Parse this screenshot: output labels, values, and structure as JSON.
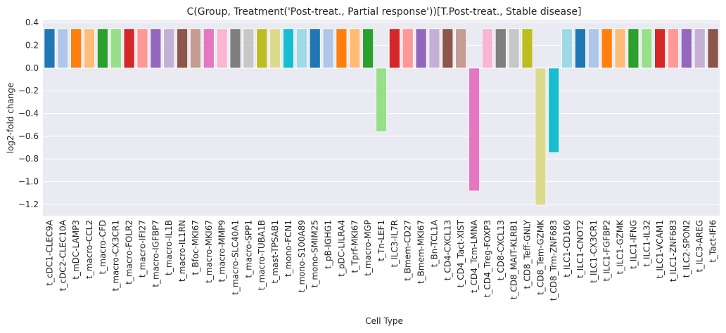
{
  "chart_data": {
    "type": "bar",
    "title": "C(Group, Treatment('Post-treat., Partial response'))[T.Post-treat., Stable disease]",
    "xlabel": "Cell Type",
    "ylabel": "log2-fold change",
    "ylim": [
      -1.3,
      0.42
    ],
    "yticks": [
      0.4,
      0.2,
      0.0,
      -0.2,
      -0.4,
      -0.6,
      -0.8,
      -1.0,
      -1.2
    ],
    "ytick_labels": [
      "0.4",
      "0.2",
      "0.0",
      "−0.2",
      "−0.4",
      "−0.6",
      "−0.8",
      "−1.0",
      "−1.2"
    ],
    "grid": true,
    "legend": "none",
    "categories": [
      "t_cDC1-CLEC9A",
      "t_cDC2-CLEC10A",
      "t_mDC-LAMP3",
      "t_macro-CCL2",
      "t_macro-CFD",
      "t_macro-CX3CR1",
      "t_macro-FOLR2",
      "t_macro-IFI27",
      "t_macro-IGFBP7",
      "t_macro-IL1B",
      "t_macro-IL1RN",
      "t_Bfoc-MKI67",
      "t_macro-MKI67",
      "t_macro-MMP9",
      "t_macro-SLC40A1",
      "t_macro-SPP1",
      "t_macro-TUBA1B",
      "t_mast-TPSAB1",
      "t_mono-FCN1",
      "t_mono-S100A89",
      "t_mono-SMIM25",
      "t_pB-IGHG1",
      "t_pDC-LILRA4",
      "t_Tprf-MKI67",
      "t_macro-MGP",
      "t_Tn-LEF1",
      "t_ILC3-IL7R",
      "t_Bmem-CD27",
      "t_Bmem-MKI67",
      "t_Bn-TCL1A",
      "t_CD4-CXCL13",
      "t_CD4_Tact-XIST",
      "t_CD4_Tcm-LMNA",
      "t_CD4_Treg-FOXP3",
      "t_CD8-CXCL13",
      "t_CD8_MAIT-KLRB1",
      "t_CD8_Teff-GNLY",
      "t_CD8_Tem-GZMK",
      "t_CD8_Trm-ZNF683",
      "t_ILC1-CD160",
      "t_ILC1-CNOT2",
      "t_ILC1-CX3CR1",
      "t_ILC1-FGFBP2",
      "t_ILC1-GZMK",
      "t_ILC1-IFNG",
      "t_ILC1-IL32",
      "t_ILC1-VCAM1",
      "t_ILC1-ZNF683",
      "t_ILC2-SPON2",
      "t_ILC3-AREG",
      "t_Tact-IFI6"
    ],
    "values": [
      0.347,
      0.347,
      0.347,
      0.347,
      0.347,
      0.347,
      0.347,
      0.347,
      0.347,
      0.347,
      0.347,
      0.347,
      0.347,
      0.347,
      0.347,
      0.347,
      0.347,
      0.347,
      0.347,
      0.347,
      0.347,
      0.347,
      0.347,
      0.347,
      0.347,
      -0.561,
      0.347,
      0.347,
      0.347,
      0.347,
      0.347,
      0.347,
      -1.083,
      0.347,
      0.347,
      0.347,
      0.347,
      -1.207,
      -0.744,
      0.347,
      0.347,
      0.347,
      0.347,
      0.347,
      0.347,
      0.347,
      0.347,
      0.347,
      0.347,
      0.347,
      0.347
    ],
    "colors": [
      "#1f77b4",
      "#aec7e8",
      "#ff7f0e",
      "#ffbb78",
      "#2ca02c",
      "#98df8a",
      "#d62728",
      "#ff9896",
      "#9467bd",
      "#c5b0d5",
      "#8c564b",
      "#c49c94",
      "#e377c2",
      "#f7b6d2",
      "#7f7f7f",
      "#c7c7c7",
      "#bcbd22",
      "#dbdb8d",
      "#17becf",
      "#9edae5"
    ],
    "plot_background": "#eaeaf2",
    "grid_color": "#ffffff"
  }
}
